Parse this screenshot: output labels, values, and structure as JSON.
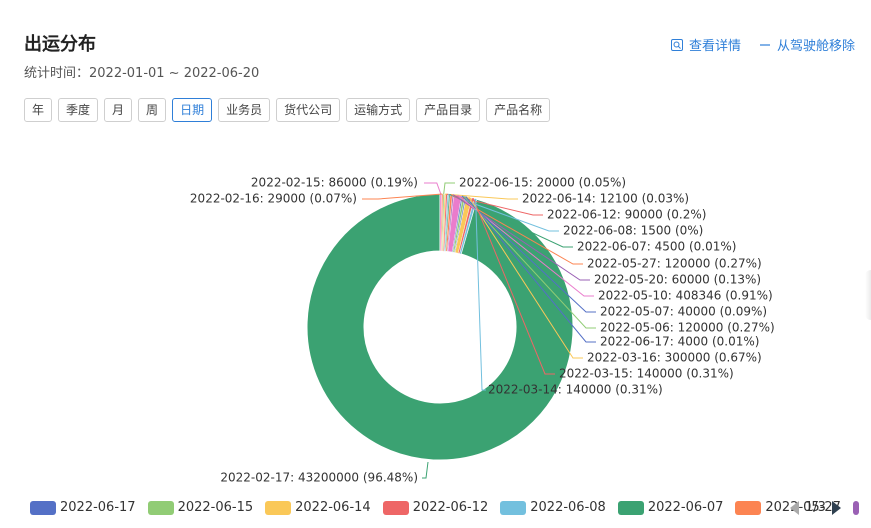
{
  "header": {
    "title": "出运分布",
    "subtitle": "统计时间：2022-01-01 ~ 2022-06-20",
    "actions": [
      {
        "label": "查看详情",
        "icon": "search-detail-icon"
      },
      {
        "label": "从驾驶舱移除",
        "icon": "minus-icon"
      }
    ]
  },
  "filters": [
    {
      "label": "年",
      "active": false
    },
    {
      "label": "季度",
      "active": false
    },
    {
      "label": "月",
      "active": false
    },
    {
      "label": "周",
      "active": false
    },
    {
      "label": "日期",
      "active": true
    },
    {
      "label": "业务员",
      "active": false
    },
    {
      "label": "货代公司",
      "active": false
    },
    {
      "label": "运输方式",
      "active": false
    },
    {
      "label": "产品目录",
      "active": false
    },
    {
      "label": "产品名称",
      "active": false
    }
  ],
  "colors": {
    "accent": "#2f7fd8",
    "main_slice": "#3ba272"
  },
  "chart_data": {
    "type": "pie",
    "donut": true,
    "slices": [
      {
        "label": "2022-02-17",
        "value": 43200000,
        "percent": "96.48%",
        "color": "#3ba272"
      },
      {
        "label": "2022-06-17",
        "value": 4000,
        "percent": "0.01%",
        "color": "#5470c6"
      },
      {
        "label": "2022-06-15",
        "value": 20000,
        "percent": "0.05%",
        "color": "#91cc75"
      },
      {
        "label": "2022-06-14",
        "value": 12100,
        "percent": "0.03%",
        "color": "#fac858"
      },
      {
        "label": "2022-06-12",
        "value": 90000,
        "percent": "0.2%",
        "color": "#ee6666"
      },
      {
        "label": "2022-06-08",
        "value": 1500,
        "percent": "0%",
        "color": "#73c0de"
      },
      {
        "label": "2022-06-07",
        "value": 4500,
        "percent": "0.01%",
        "color": "#3ba272"
      },
      {
        "label": "2022-05-27",
        "value": 120000,
        "percent": "0.27%",
        "color": "#fc8452"
      },
      {
        "label": "2022-05-20",
        "value": 60000,
        "percent": "0.13%",
        "color": "#9a60b4"
      },
      {
        "label": "2022-05-10",
        "value": 408346,
        "percent": "0.91%",
        "color": "#ea7ccc"
      },
      {
        "label": "2022-05-07",
        "value": 40000,
        "percent": "0.09%",
        "color": "#5470c6"
      },
      {
        "label": "2022-05-06",
        "value": 120000,
        "percent": "0.27%",
        "color": "#91cc75"
      },
      {
        "label": "2022-03-16",
        "value": 300000,
        "percent": "0.67%",
        "color": "#fac858"
      },
      {
        "label": "2022-03-15",
        "value": 140000,
        "percent": "0.31%",
        "color": "#ee6666"
      },
      {
        "label": "2022-03-14",
        "value": 140000,
        "percent": "0.31%",
        "color": "#73c0de"
      },
      {
        "label": "2022-02-16",
        "value": 29000,
        "percent": "0.07%",
        "color": "#fc8452"
      },
      {
        "label": "2022-02-15",
        "value": 86000,
        "percent": "0.19%",
        "color": "#ea7ccc"
      }
    ],
    "legend": {
      "items": [
        {
          "label": "2022-06-17",
          "color": "#5470c6"
        },
        {
          "label": "2022-06-15",
          "color": "#91cc75"
        },
        {
          "label": "2022-06-14",
          "color": "#fac858"
        },
        {
          "label": "2022-06-12",
          "color": "#ee6666"
        },
        {
          "label": "2022-06-08",
          "color": "#73c0de"
        },
        {
          "label": "2022-06-07",
          "color": "#3ba272"
        },
        {
          "label": "2022-05-27",
          "color": "#fc8452"
        }
      ],
      "page": "1/3",
      "placement": "bottom"
    }
  }
}
